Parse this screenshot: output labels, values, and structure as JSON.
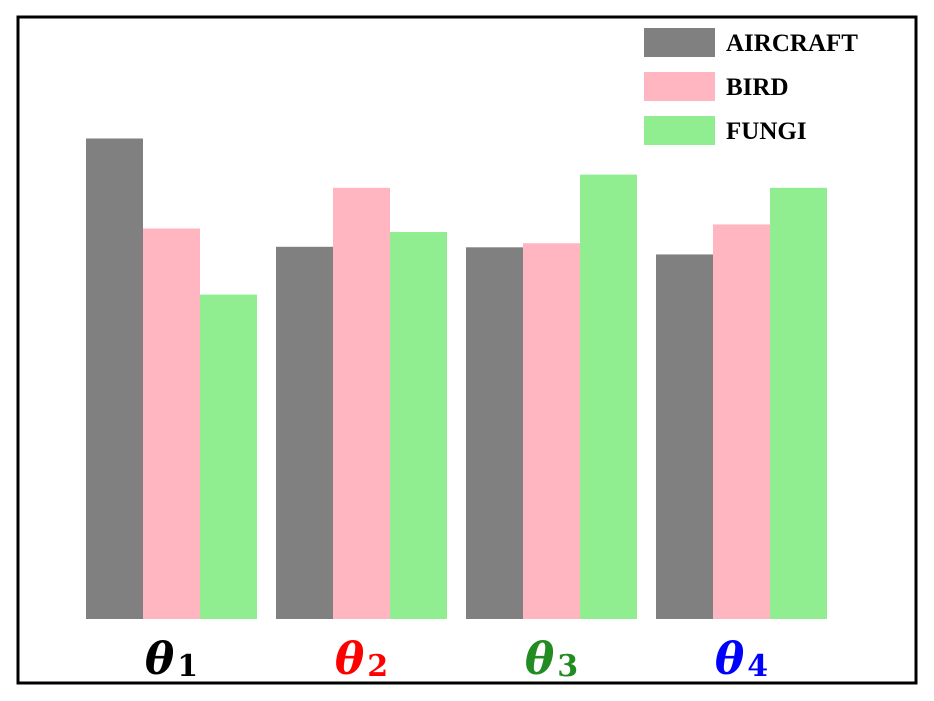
{
  "chart_data": {
    "type": "bar",
    "title": "",
    "xlabel": "",
    "ylabel": "",
    "categories": [
      {
        "symbol": "θ",
        "subscript": "1",
        "color": "#000000"
      },
      {
        "symbol": "θ",
        "subscript": "2",
        "color": "#ff0000"
      },
      {
        "symbol": "θ",
        "subscript": "3",
        "color": "#228b22"
      },
      {
        "symbol": "θ",
        "subscript": "4",
        "color": "#0000ff"
      }
    ],
    "series": [
      {
        "name": "AIRCRAFT",
        "color": "#808080",
        "values": [
          94.5,
          73.2,
          73.1,
          71.7
        ]
      },
      {
        "name": "BIRD",
        "color": "#ffb6c1",
        "values": [
          76.8,
          84.8,
          73.9,
          77.6
        ]
      },
      {
        "name": "FUNGI",
        "color": "#90ee90",
        "values": [
          63.8,
          76.1,
          87.4,
          84.8
        ]
      }
    ],
    "ylim": [
      0,
      118
    ],
    "grid": false,
    "legend_position": "top-right"
  }
}
